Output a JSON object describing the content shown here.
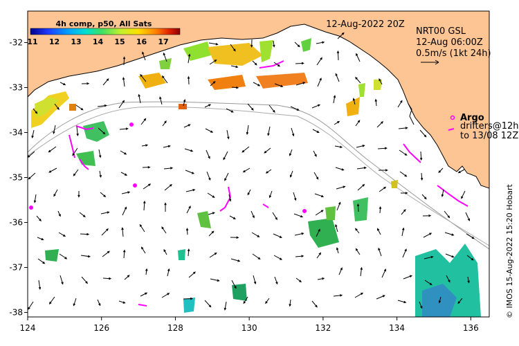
{
  "map": {
    "timestamp": "12-Aug-2022 20Z",
    "colorbar": {
      "title": "4h comp, p50, All Sats",
      "ticks": [
        "11",
        "12",
        "13",
        "14",
        "15",
        "16",
        "17"
      ],
      "gradient": [
        "#00008b",
        "#1f3cff",
        "#00a0ff",
        "#00e0d0",
        "#40e060",
        "#c0f030",
        "#ffe000",
        "#ff8000",
        "#e02000",
        "#8b0000"
      ]
    },
    "current_legend": {
      "product": "NRT00 GSL",
      "time": "12-Aug 06:00Z",
      "scale": "0.5m/s (1kt 24h)"
    },
    "argo_legend": {
      "title": "Argo",
      "line1": "drifters@12h",
      "line2": "to 13/08 12Z"
    },
    "credit": "© IMOS 15-Aug-2022 15:20 Hobart",
    "x_ticks": [
      {
        "label": "124",
        "value": 124
      },
      {
        "label": "126",
        "value": 126
      },
      {
        "label": "128",
        "value": 128
      },
      {
        "label": "130",
        "value": 130
      },
      {
        "label": "132",
        "value": 132
      },
      {
        "label": "134",
        "value": 134
      },
      {
        "label": "136",
        "value": 136
      }
    ],
    "y_ticks": [
      {
        "label": "-32",
        "value": -32
      },
      {
        "label": "-33",
        "value": -33
      },
      {
        "label": "-34",
        "value": -34
      },
      {
        "label": "-35",
        "value": -35
      },
      {
        "label": "-36",
        "value": -36
      },
      {
        "label": "-37",
        "value": -37
      },
      {
        "label": "-38",
        "value": -38
      }
    ],
    "extent": {
      "lon": [
        124,
        136.5
      ],
      "lat": [
        -38.1,
        -31.3
      ]
    },
    "colors": {
      "land": "#fdc593",
      "ocean": "#ffffff",
      "argo": "#ff00ff",
      "isobath": "#999999"
    }
  }
}
